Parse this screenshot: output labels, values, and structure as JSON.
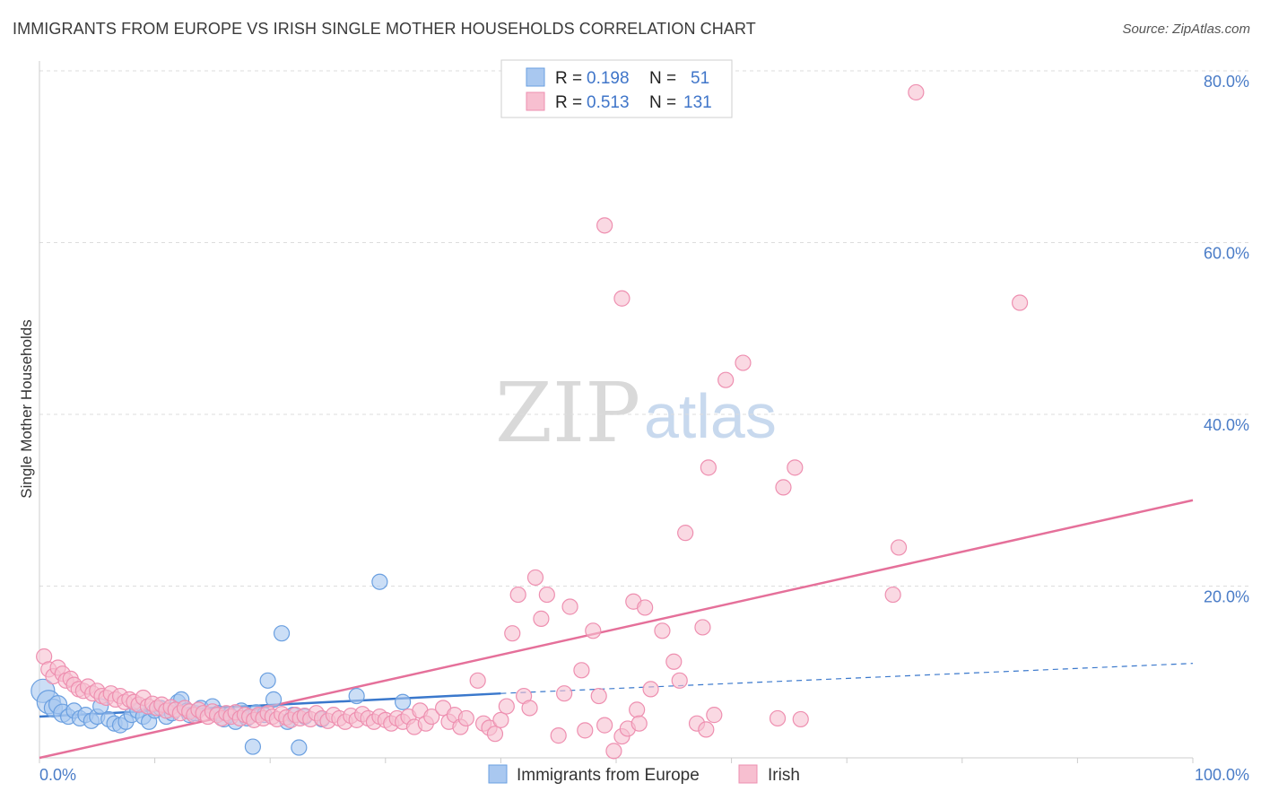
{
  "title": "IMMIGRANTS FROM EUROPE VS IRISH SINGLE MOTHER HOUSEHOLDS CORRELATION CHART",
  "source": "Source: ZipAtlas.com",
  "watermark": {
    "zip": "ZIP",
    "atlas": "atlas"
  },
  "colors": {
    "blue_fill": "#a9c8f0",
    "blue_stroke": "#6a9fe0",
    "blue_line": "#3a78cc",
    "pink_fill": "#f7bfd0",
    "pink_stroke": "#ee8fb0",
    "pink_line": "#e5709a",
    "grid": "#dddddd",
    "axis_text": "#4a7cc7"
  },
  "legend": {
    "rows": [
      {
        "r_label": "R =",
        "r_value": "0.198",
        "n_label": "N =",
        "n_value": "51",
        "color": "blue"
      },
      {
        "r_label": "R =",
        "r_value": "0.513",
        "n_label": "N =",
        "n_value": "131",
        "color": "pink"
      }
    ]
  },
  "bottom_legend": [
    "Immigrants from Europe",
    "Irish"
  ],
  "chart_data": {
    "type": "scatter",
    "title": "IMMIGRANTS FROM EUROPE VS IRISH SINGLE MOTHER HOUSEHOLDS CORRELATION CHART",
    "xlabel": "",
    "ylabel": "Single Mother Households",
    "xlim": [
      0,
      100
    ],
    "ylim": [
      0,
      80
    ],
    "x_tick_labels": [
      "0.0%",
      "100.0%"
    ],
    "y_tick_labels": [
      "20.0%",
      "40.0%",
      "60.0%",
      "80.0%"
    ],
    "y_ticks": [
      20,
      40,
      60,
      80
    ],
    "grid": true,
    "legend_position": "top-center",
    "series": [
      {
        "name": "Immigrants from Europe",
        "color": "blue",
        "points": [
          [
            0.3,
            7.8
          ],
          [
            0.8,
            6.5
          ],
          [
            1.2,
            5.8
          ],
          [
            1.6,
            6.2
          ],
          [
            2.0,
            5.2
          ],
          [
            2.5,
            4.8
          ],
          [
            3.0,
            5.5
          ],
          [
            3.5,
            4.6
          ],
          [
            4.0,
            5.0
          ],
          [
            4.5,
            4.3
          ],
          [
            5.0,
            4.8
          ],
          [
            5.3,
            6.0
          ],
          [
            6.0,
            4.5
          ],
          [
            6.5,
            4.0
          ],
          [
            7.0,
            3.8
          ],
          [
            7.5,
            4.2
          ],
          [
            8.0,
            5.0
          ],
          [
            8.5,
            5.5
          ],
          [
            9.0,
            4.8
          ],
          [
            9.5,
            4.2
          ],
          [
            10.0,
            5.5
          ],
          [
            10.5,
            5.8
          ],
          [
            11.0,
            4.8
          ],
          [
            11.5,
            5.2
          ],
          [
            12.0,
            6.5
          ],
          [
            12.3,
            6.8
          ],
          [
            12.8,
            5.5
          ],
          [
            13.0,
            5.0
          ],
          [
            13.5,
            5.2
          ],
          [
            14.0,
            5.8
          ],
          [
            15.0,
            6.0
          ],
          [
            15.5,
            5.2
          ],
          [
            16.0,
            4.5
          ],
          [
            16.5,
            5.0
          ],
          [
            17.0,
            4.2
          ],
          [
            17.5,
            5.5
          ],
          [
            18.0,
            4.6
          ],
          [
            18.8,
            5.3
          ],
          [
            19.5,
            5.0
          ],
          [
            19.8,
            9.0
          ],
          [
            20.3,
            6.8
          ],
          [
            21.0,
            14.5
          ],
          [
            21.5,
            4.2
          ],
          [
            22.0,
            5.0
          ],
          [
            22.5,
            1.2
          ],
          [
            23.0,
            4.8
          ],
          [
            24.5,
            4.5
          ],
          [
            27.5,
            7.2
          ],
          [
            29.5,
            20.5
          ],
          [
            31.5,
            6.5
          ],
          [
            18.5,
            1.3
          ]
        ],
        "trend": {
          "x": [
            0,
            40
          ],
          "y": [
            4.8,
            7.5
          ],
          "dashed_to": [
            100,
            11.0
          ]
        }
      },
      {
        "name": "Irish",
        "color": "pink",
        "points": [
          [
            0.4,
            11.8
          ],
          [
            0.8,
            10.3
          ],
          [
            1.2,
            9.5
          ],
          [
            1.6,
            10.5
          ],
          [
            2.0,
            9.8
          ],
          [
            2.3,
            9.0
          ],
          [
            2.7,
            9.2
          ],
          [
            3.0,
            8.5
          ],
          [
            3.4,
            8.0
          ],
          [
            3.8,
            7.8
          ],
          [
            4.2,
            8.3
          ],
          [
            4.6,
            7.5
          ],
          [
            5.0,
            7.8
          ],
          [
            5.4,
            7.2
          ],
          [
            5.8,
            7.0
          ],
          [
            6.2,
            7.5
          ],
          [
            6.6,
            6.8
          ],
          [
            7.0,
            7.2
          ],
          [
            7.4,
            6.5
          ],
          [
            7.8,
            6.8
          ],
          [
            8.2,
            6.5
          ],
          [
            8.6,
            6.2
          ],
          [
            9.0,
            7.0
          ],
          [
            9.4,
            6.0
          ],
          [
            9.8,
            6.3
          ],
          [
            10.2,
            5.8
          ],
          [
            10.6,
            6.2
          ],
          [
            11.0,
            5.5
          ],
          [
            11.4,
            5.9
          ],
          [
            11.8,
            5.6
          ],
          [
            12.2,
            5.2
          ],
          [
            12.6,
            5.8
          ],
          [
            13.0,
            5.4
          ],
          [
            13.4,
            5.0
          ],
          [
            13.8,
            5.6
          ],
          [
            14.2,
            5.2
          ],
          [
            14.6,
            4.8
          ],
          [
            15.0,
            5.4
          ],
          [
            15.4,
            5.0
          ],
          [
            15.8,
            4.6
          ],
          [
            16.2,
            5.2
          ],
          [
            16.6,
            4.8
          ],
          [
            17.0,
            5.3
          ],
          [
            17.4,
            4.6
          ],
          [
            17.8,
            5.0
          ],
          [
            18.2,
            4.8
          ],
          [
            18.6,
            4.4
          ],
          [
            19.0,
            5.0
          ],
          [
            19.4,
            4.6
          ],
          [
            19.8,
            5.2
          ],
          [
            20.2,
            4.8
          ],
          [
            20.6,
            4.5
          ],
          [
            21.0,
            5.1
          ],
          [
            21.4,
            4.7
          ],
          [
            21.8,
            4.4
          ],
          [
            22.2,
            5.0
          ],
          [
            22.6,
            4.6
          ],
          [
            23.0,
            4.9
          ],
          [
            23.5,
            4.5
          ],
          [
            24.0,
            5.2
          ],
          [
            24.5,
            4.6
          ],
          [
            25.0,
            4.3
          ],
          [
            25.5,
            5.0
          ],
          [
            26.0,
            4.6
          ],
          [
            26.5,
            4.2
          ],
          [
            27.0,
            4.9
          ],
          [
            27.5,
            4.4
          ],
          [
            28.0,
            5.1
          ],
          [
            28.5,
            4.6
          ],
          [
            29.0,
            4.2
          ],
          [
            29.5,
            4.8
          ],
          [
            30.0,
            4.4
          ],
          [
            30.5,
            4.0
          ],
          [
            31.0,
            4.6
          ],
          [
            31.5,
            4.2
          ],
          [
            32.0,
            4.8
          ],
          [
            32.5,
            3.6
          ],
          [
            33.0,
            5.5
          ],
          [
            33.5,
            4.0
          ],
          [
            34.0,
            4.8
          ],
          [
            35.0,
            5.8
          ],
          [
            35.5,
            4.2
          ],
          [
            36.0,
            5.0
          ],
          [
            36.5,
            3.6
          ],
          [
            37.0,
            4.6
          ],
          [
            38.0,
            9.0
          ],
          [
            38.5,
            4.0
          ],
          [
            39.0,
            3.5
          ],
          [
            39.5,
            2.8
          ],
          [
            40.0,
            4.4
          ],
          [
            40.5,
            6.0
          ],
          [
            41.0,
            14.5
          ],
          [
            41.5,
            19.0
          ],
          [
            42.0,
            7.2
          ],
          [
            42.5,
            5.8
          ],
          [
            43.0,
            21.0
          ],
          [
            43.5,
            16.2
          ],
          [
            44.0,
            19.0
          ],
          [
            45.0,
            2.6
          ],
          [
            45.5,
            7.5
          ],
          [
            46.0,
            17.6
          ],
          [
            47.0,
            10.2
          ],
          [
            47.3,
            3.2
          ],
          [
            48.0,
            14.8
          ],
          [
            48.5,
            7.2
          ],
          [
            49.0,
            3.8
          ],
          [
            49.8,
            0.8
          ],
          [
            50.5,
            2.5
          ],
          [
            51.0,
            3.4
          ],
          [
            51.5,
            18.2
          ],
          [
            51.8,
            5.6
          ],
          [
            52.0,
            4.0
          ],
          [
            52.5,
            17.5
          ],
          [
            53.0,
            8.0
          ],
          [
            54.0,
            14.8
          ],
          [
            55.0,
            11.2
          ],
          [
            55.5,
            9.0
          ],
          [
            56.0,
            26.2
          ],
          [
            57.0,
            4.0
          ],
          [
            57.5,
            15.2
          ],
          [
            57.8,
            3.3
          ],
          [
            58.5,
            5.0
          ],
          [
            59.5,
            44.0
          ],
          [
            61.0,
            46.0
          ],
          [
            64.5,
            31.5
          ],
          [
            65.5,
            33.8
          ],
          [
            66.0,
            4.5
          ],
          [
            74.0,
            19.0
          ],
          [
            74.5,
            24.5
          ],
          [
            76.0,
            77.5
          ],
          [
            85.0,
            53.0
          ],
          [
            49.0,
            62.0
          ],
          [
            50.5,
            53.5
          ],
          [
            58.0,
            33.8
          ],
          [
            64.0,
            4.6
          ]
        ],
        "trend": {
          "x": [
            0,
            100
          ],
          "y": [
            0,
            30.0
          ]
        }
      }
    ]
  }
}
